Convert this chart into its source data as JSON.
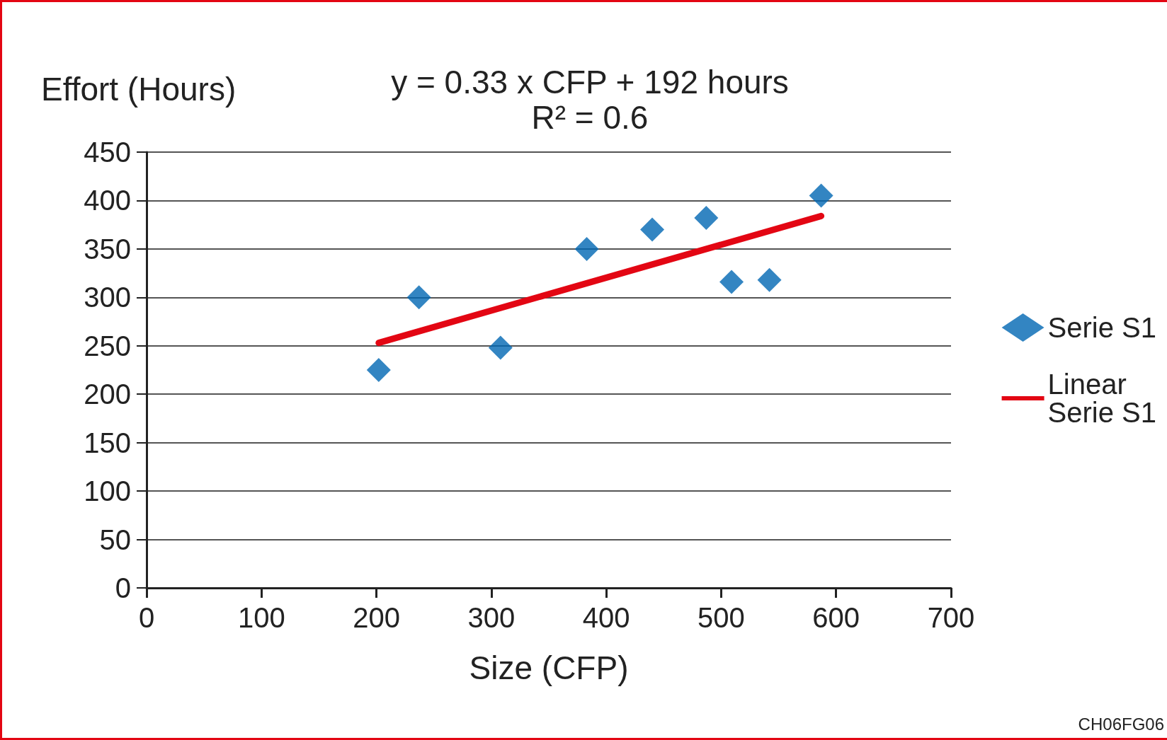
{
  "chart_data": {
    "type": "scatter",
    "title": "y = 0.33 x CFP + 192 hours",
    "subtitle": "R² = 0.6",
    "xlabel": "Size (CFP)",
    "ylabel": "Effort (Hours)",
    "x": [
      202,
      237,
      308,
      383,
      440,
      487,
      509,
      542,
      587
    ],
    "series": [
      {
        "name": "Serie S1",
        "color": "#0066b3",
        "marker": "diamond",
        "values": [
          225,
          300,
          248,
          350,
          370,
          382,
          316,
          318,
          405
        ]
      },
      {
        "name": "Linear Serie S1",
        "type": "line",
        "color": "#e30613",
        "marker": "none",
        "x": [
          202,
          587
        ],
        "values": [
          253,
          384
        ]
      }
    ],
    "xlim": [
      0,
      700
    ],
    "xticks": [
      0,
      100,
      200,
      300,
      400,
      500,
      600,
      700
    ],
    "ylim": [
      0,
      450
    ],
    "yticks": [
      0,
      50,
      100,
      150,
      200,
      250,
      300,
      350,
      400,
      450
    ],
    "grid": "y",
    "legend": "right",
    "annotations": [
      "CH06FG06"
    ]
  }
}
